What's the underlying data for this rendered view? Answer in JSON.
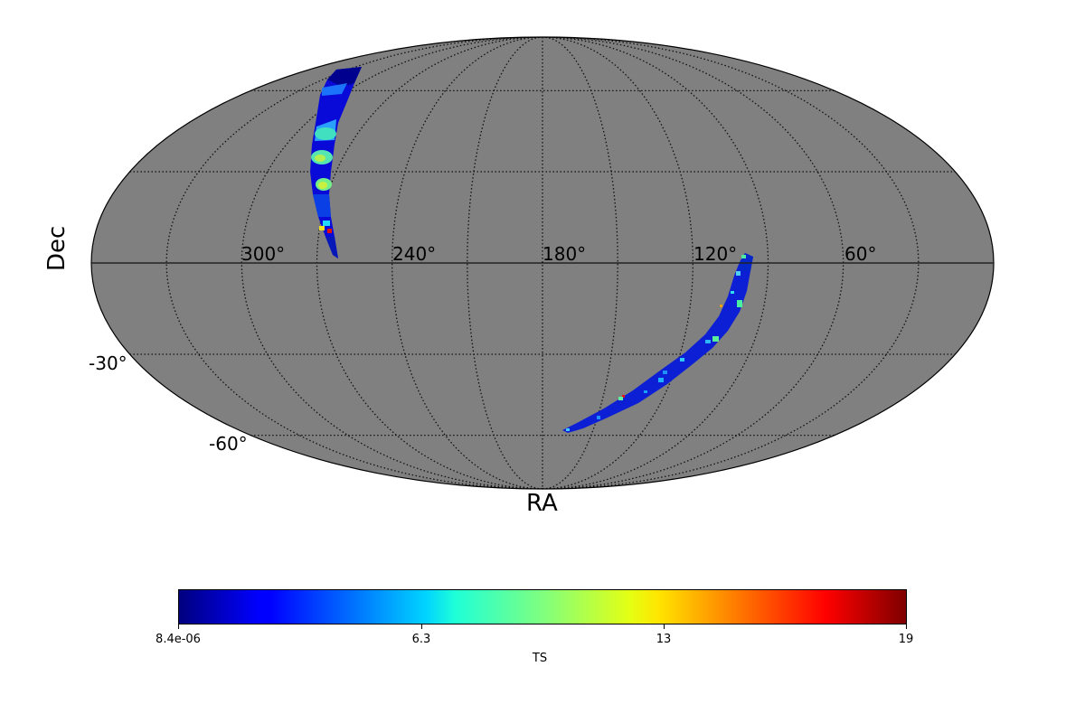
{
  "chart_data": {
    "type": "heatmap",
    "projection": "mollweide",
    "title": "",
    "xlabel": "RA",
    "ylabel": "Dec",
    "background_color": "#808080",
    "grid": true,
    "ra_tick_labels": [
      "300°",
      "240°",
      "180°",
      "120°",
      "60°"
    ],
    "ra_ticks_deg": [
      300,
      240,
      180,
      120,
      60
    ],
    "dec_tick_labels": [
      "-30°",
      "-60°"
    ],
    "dec_ticks_deg": [
      -30,
      -60
    ],
    "meridians_deg": [
      330,
      300,
      270,
      240,
      210,
      180,
      150,
      120,
      90,
      60,
      30
    ],
    "parallels_deg": [
      60,
      30,
      0,
      -30,
      -60
    ],
    "regions": [
      {
        "name": "northern arc",
        "ra_range_deg": [
          280,
          305
        ],
        "dec_range_deg": [
          0,
          75
        ],
        "dominant_ts": "low (dark blue)",
        "max_ts_approx": 17
      },
      {
        "name": "southern arc",
        "ra_range_deg": [
          105,
          178
        ],
        "dec_range_deg": [
          -57,
          2
        ],
        "dominant_ts": "low (dark blue)",
        "max_ts_approx": 17
      }
    ],
    "colorbar": {
      "label": "TS",
      "colormap": "jet",
      "min": 8.4e-06,
      "max": 19,
      "tick_labels": [
        "8.4e-06",
        "6.3",
        "13",
        "19"
      ],
      "orientation": "horizontal",
      "position": "bottom"
    }
  },
  "labels": {
    "ra_title": "RA",
    "dec_title": "Dec",
    "ra_ticks": [
      "300°",
      "240°",
      "180°",
      "120°",
      "60°"
    ],
    "dec_ticks": [
      "-30°",
      "-60°"
    ],
    "colorbar_title": "TS",
    "colorbar_ticks": [
      "8.4e-06",
      "6.3",
      "13",
      "19"
    ]
  }
}
